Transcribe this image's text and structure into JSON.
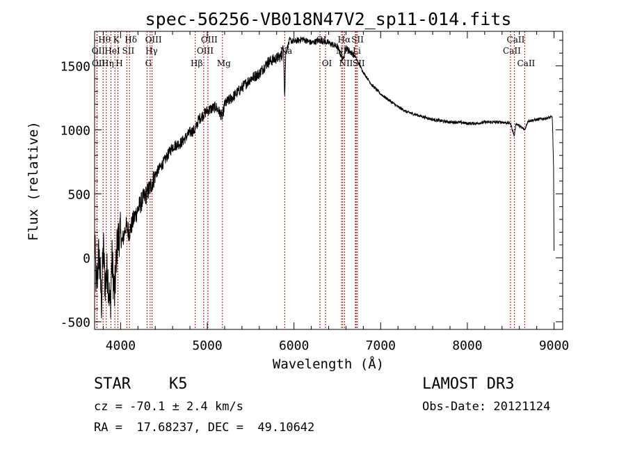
{
  "chart_data": {
    "type": "line",
    "title": "spec-56256-VB018N47V2_sp11-014.fits",
    "xlabel": "Wavelength (Å)",
    "ylabel": "Flux (relative)",
    "xlim": [
      3700,
      9100
    ],
    "ylim": [
      -560,
      1770
    ],
    "x_ticks": [
      4000,
      5000,
      6000,
      7000,
      8000,
      9000
    ],
    "y_ticks": [
      -500,
      0,
      500,
      1000,
      1500
    ],
    "spectrum_anchors": [
      [
        3700,
        150
      ],
      [
        3720,
        -250
      ],
      [
        3750,
        50
      ],
      [
        3780,
        -350
      ],
      [
        3800,
        100
      ],
      [
        3820,
        -200
      ],
      [
        3850,
        -100
      ],
      [
        3880,
        -400
      ],
      [
        3900,
        0
      ],
      [
        3930,
        -300
      ],
      [
        3960,
        100
      ],
      [
        3990,
        200
      ],
      [
        4020,
        120
      ],
      [
        4060,
        250
      ],
      [
        4100,
        200
      ],
      [
        4150,
        300
      ],
      [
        4200,
        380
      ],
      [
        4250,
        450
      ],
      [
        4300,
        500
      ],
      [
        4340,
        550
      ],
      [
        4400,
        650
      ],
      [
        4500,
        750
      ],
      [
        4600,
        870
      ],
      [
        4700,
        900
      ],
      [
        4800,
        980
      ],
      [
        4860,
        1000
      ],
      [
        4900,
        1080
      ],
      [
        5000,
        1150
      ],
      [
        5100,
        1180
      ],
      [
        5175,
        1100
      ],
      [
        5200,
        1200
      ],
      [
        5300,
        1260
      ],
      [
        5400,
        1330
      ],
      [
        5500,
        1400
      ],
      [
        5600,
        1440
      ],
      [
        5700,
        1530
      ],
      [
        5800,
        1560
      ],
      [
        5860,
        1580
      ],
      [
        5880,
        1650
      ],
      [
        5893,
        1250
      ],
      [
        5905,
        1600
      ],
      [
        5950,
        1700
      ],
      [
        6000,
        1690
      ],
      [
        6100,
        1710
      ],
      [
        6200,
        1680
      ],
      [
        6300,
        1700
      ],
      [
        6400,
        1680
      ],
      [
        6500,
        1650
      ],
      [
        6563,
        1550
      ],
      [
        6600,
        1640
      ],
      [
        6700,
        1580
      ],
      [
        6800,
        1450
      ],
      [
        6900,
        1350
      ],
      [
        7000,
        1280
      ],
      [
        7100,
        1230
      ],
      [
        7200,
        1180
      ],
      [
        7300,
        1140
      ],
      [
        7400,
        1120
      ],
      [
        7500,
        1100
      ],
      [
        7600,
        1080
      ],
      [
        7700,
        1070
      ],
      [
        7800,
        1060
      ],
      [
        7900,
        1060
      ],
      [
        8000,
        1050
      ],
      [
        8100,
        1050
      ],
      [
        8200,
        1060
      ],
      [
        8300,
        1060
      ],
      [
        8400,
        1060
      ],
      [
        8498,
        1050
      ],
      [
        8520,
        1000
      ],
      [
        8542,
        950
      ],
      [
        8560,
        1050
      ],
      [
        8662,
        1000
      ],
      [
        8700,
        1070
      ],
      [
        8800,
        1080
      ],
      [
        8900,
        1090
      ],
      [
        8980,
        1100
      ],
      [
        8995,
        700
      ],
      [
        9000,
        50
      ]
    ],
    "lines": [
      {
        "label": "Hθ",
        "x": 3798,
        "row": 0
      },
      {
        "label": "OII",
        "x": 3727,
        "row": 1
      },
      {
        "label": "OII",
        "x": 3729,
        "row": 2
      },
      {
        "label": "K",
        "x": 3934,
        "row": 0
      },
      {
        "label": "HeI",
        "x": 3889,
        "row": 1
      },
      {
        "label": "Hη",
        "x": 3835,
        "row": 2
      },
      {
        "label": "Hδ",
        "x": 4102,
        "row": 0
      },
      {
        "label": "SII",
        "x": 4072,
        "row": 1
      },
      {
        "label": "H",
        "x": 3969,
        "row": 2
      },
      {
        "label": "OIII",
        "x": 4363,
        "row": 0
      },
      {
        "label": "Hγ",
        "x": 4341,
        "row": 1
      },
      {
        "label": "G",
        "x": 4305,
        "row": 2
      },
      {
        "label": "Hβ",
        "x": 4861,
        "row": 2
      },
      {
        "label": "OIII",
        "x": 5007,
        "row": 0
      },
      {
        "label": "OIII",
        "x": 4959,
        "row": 1
      },
      {
        "label": "Mg",
        "x": 5175,
        "row": 2
      },
      {
        "label": "Na",
        "x": 5893,
        "row": 1
      },
      {
        "label": "OI",
        "x": 6300,
        "row": 0
      },
      {
        "label": "OI",
        "x": 6364,
        "row": 2
      },
      {
        "label": "Hα",
        "x": 6563,
        "row": 0
      },
      {
        "label": "NII",
        "x": 6548,
        "row": 1
      },
      {
        "label": "NII",
        "x": 6584,
        "row": 2
      },
      {
        "label": "SII",
        "x": 6717,
        "row": 0
      },
      {
        "label": "Li",
        "x": 6708,
        "row": 1
      },
      {
        "label": "SII",
        "x": 6731,
        "row": 2
      },
      {
        "label": "CaII",
        "x": 8542,
        "row": 0
      },
      {
        "label": "CaII",
        "x": 8498,
        "row": 1
      },
      {
        "label": "CaII",
        "x": 8662,
        "row": 2
      }
    ]
  },
  "info": {
    "object_class": "STAR",
    "subclass": "K5",
    "survey": "LAMOST DR3",
    "cz": "cz = -70.1 ± 2.4 km/s",
    "obs_date": "Obs-Date: 20121124",
    "coords": "RA =  17.68237, DEC =  49.10642"
  },
  "colors": {
    "line_marker": "#c00000",
    "spectrum": "#000000",
    "axis": "#000000"
  }
}
